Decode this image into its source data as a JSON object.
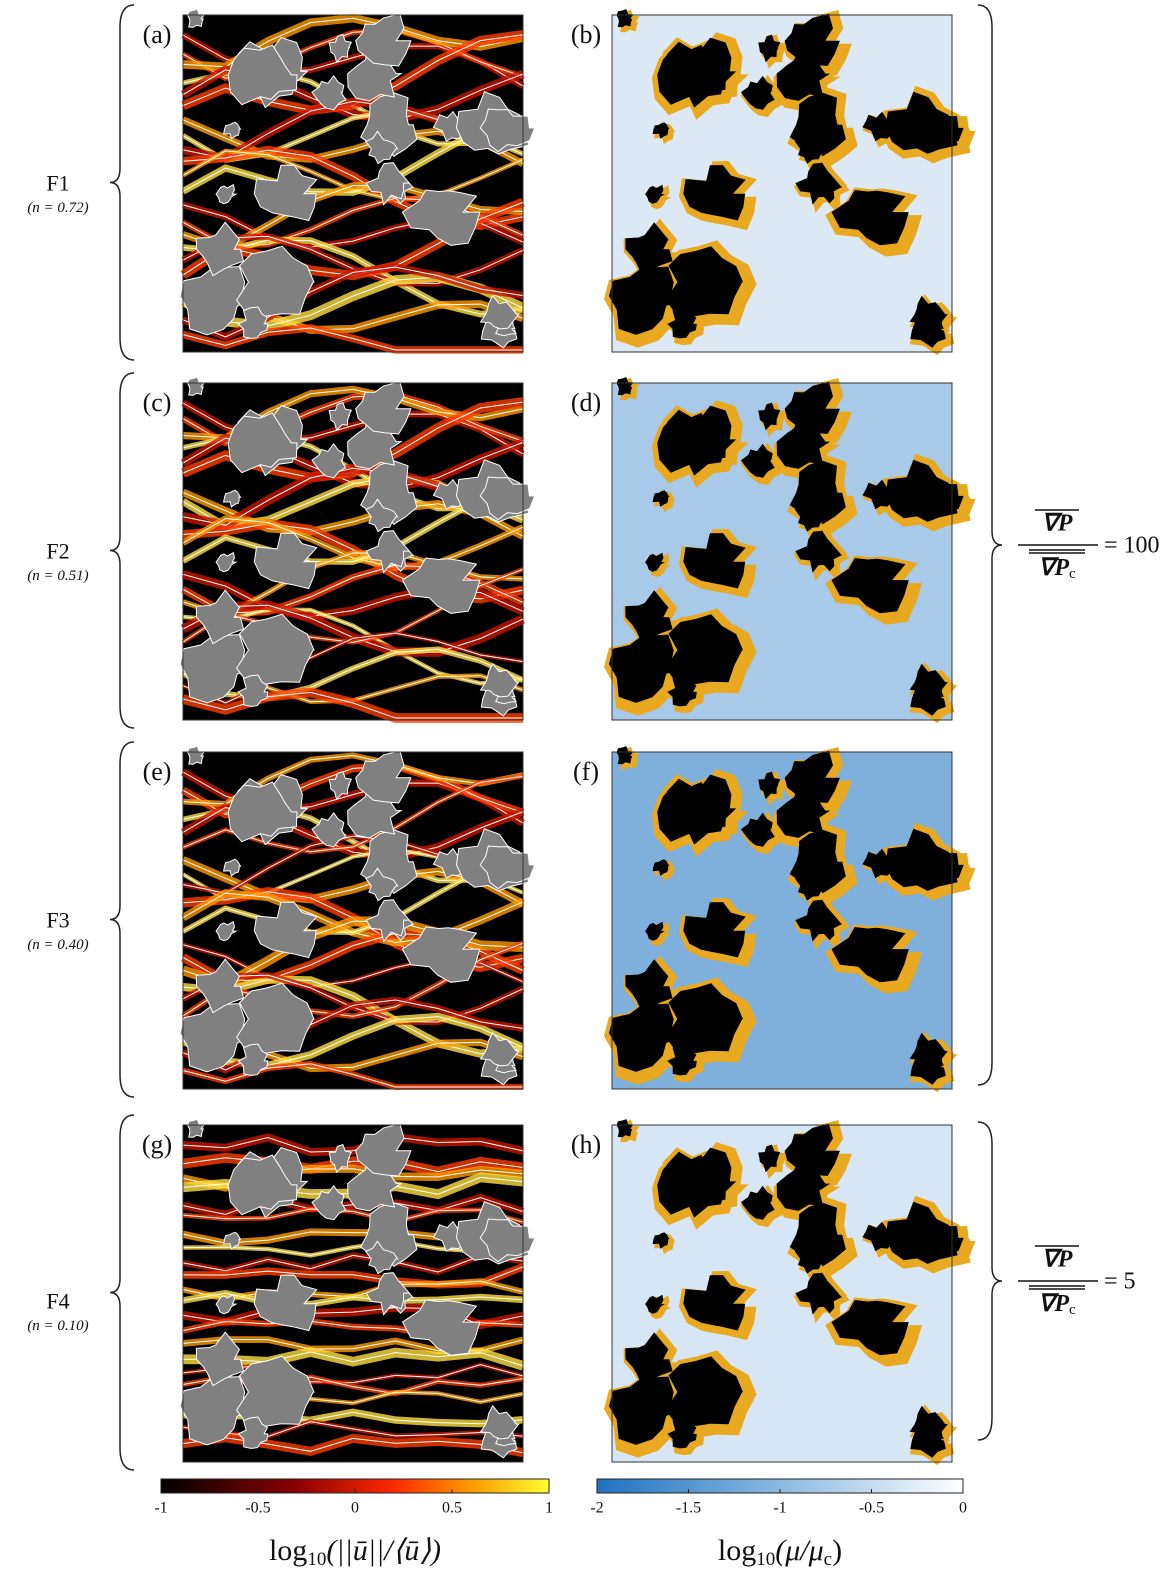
{
  "rows": [
    {
      "name": "F1",
      "n_label": "(n = 0.72)",
      "left_panel": "(a)",
      "right_panel": "(b)"
    },
    {
      "name": "F2",
      "n_label": "(n = 0.51)",
      "left_panel": "(c)",
      "right_panel": "(d)"
    },
    {
      "name": "F3",
      "n_label": "(n = 0.40)",
      "left_panel": "(e)",
      "right_panel": "(f)"
    },
    {
      "name": "F4",
      "n_label": "(n = 0.10)",
      "left_panel": "(g)",
      "right_panel": "(h)"
    }
  ],
  "pressure_labels": [
    {
      "numerator": "∇P",
      "denominator": "∇P",
      "denominator_subscript": "c",
      "relation": "= 100"
    },
    {
      "numerator": "∇P",
      "denominator": "∇P",
      "denominator_subscript": "c",
      "relation": "= 5"
    }
  ],
  "colorbars": [
    {
      "lim": [
        -1,
        1
      ],
      "ticks": [
        -1,
        -0.5,
        0,
        0.5,
        1
      ],
      "label": {
        "func": "log",
        "subscript": "10",
        "argument": "(||ū||/⟨ū⟩)"
      }
    },
    {
      "lim": [
        -2,
        0
      ],
      "ticks": [
        -2,
        -1.5,
        -1,
        -0.5,
        0
      ],
      "label": {
        "func": "log",
        "subscript": "10",
        "argument": "(μ/μ"
      },
      "label_subscript": "c",
      "label_close": ")"
    }
  ]
}
